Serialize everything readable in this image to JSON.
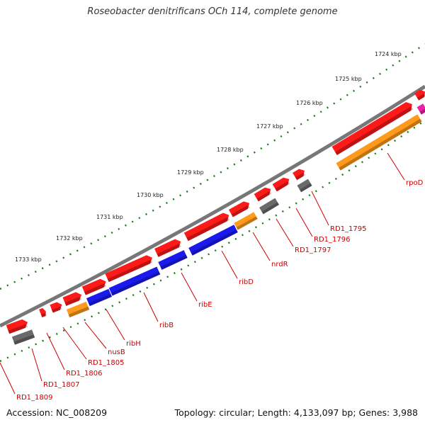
{
  "title": "Roseobacter denitrificans OCh 114, complete genome",
  "footer": {
    "accession": "Accession: NC_008209",
    "summary": "Topology: circular; Length: 4,133,097 bp; Genes: 3,988"
  },
  "colors": {
    "backbone": "#777777",
    "tick": "#1a7a1a",
    "forward_gene": "#ff1a1a",
    "dark_red": "#c00000",
    "blue_gene": "#1a1aee",
    "orange_gene": "#ff9a1a",
    "gray_gene": "#6a6a6a",
    "magenta_gene": "#ee22aa",
    "label": "#cc0000"
  },
  "scale_labels": [
    "1724 kbp",
    "1725 kbp",
    "1726 kbp",
    "1727 kbp",
    "1728 kbp",
    "1729 kbp",
    "1730 kbp",
    "1731 kbp",
    "1732 kbp",
    "1733 kbp"
  ],
  "gene_labels": [
    "rpoD",
    "RD1_1795",
    "RD1_1796",
    "RD1_1797",
    "nrdR",
    "ribD",
    "ribE",
    "ribB",
    "ribH",
    "nusB",
    "RD1_1805",
    "RD1_1806",
    "RD1_1807",
    "RD1_1809"
  ]
}
